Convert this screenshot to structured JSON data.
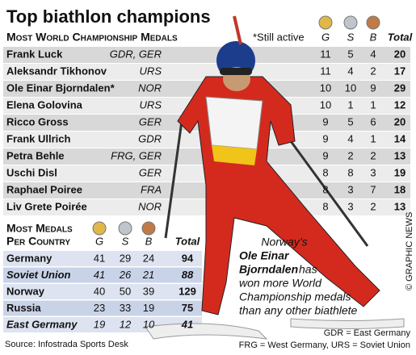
{
  "header": {
    "title": "Top biathlon champions"
  },
  "athletes": {
    "heading": "Most World Championship Medals",
    "note": "*Still active",
    "columns": [
      "G",
      "S",
      "B",
      "Total"
    ],
    "rows": [
      {
        "name": "Frank Luck",
        "country": "GDR, GER",
        "values": [
          11,
          5,
          4,
          20
        ]
      },
      {
        "name": "Aleksandr Tikhonov",
        "country": "URS",
        "values": [
          11,
          4,
          2,
          17
        ]
      },
      {
        "name": "Ole Einar Bjorndalen*",
        "country": "NOR",
        "values": [
          10,
          10,
          9,
          29
        ]
      },
      {
        "name": "Elena Golovina",
        "country": "URS",
        "values": [
          10,
          1,
          1,
          12
        ]
      },
      {
        "name": "Ricco Gross",
        "country": "GER",
        "values": [
          9,
          5,
          6,
          20
        ]
      },
      {
        "name": "Frank Ullrich",
        "country": "GDR",
        "values": [
          9,
          4,
          1,
          14
        ]
      },
      {
        "name": "Petra Behle",
        "country": "FRG, GER",
        "values": [
          9,
          2,
          2,
          13
        ]
      },
      {
        "name": "Uschi Disl",
        "country": "GER",
        "values": [
          8,
          8,
          3,
          19
        ]
      },
      {
        "name": "Raphael Poiree",
        "country": "FRA",
        "values": [
          8,
          3,
          7,
          18
        ]
      },
      {
        "name": "Liv Grete Poirée",
        "country": "NOR",
        "values": [
          8,
          3,
          2,
          13
        ]
      }
    ]
  },
  "countries": {
    "heading": [
      "Most Medals",
      "Per Country"
    ],
    "columns": [
      "G",
      "S",
      "B",
      "Total"
    ],
    "rows": [
      {
        "name": "Germany",
        "values": [
          41,
          29,
          24,
          94
        ]
      },
      {
        "name": "Soviet Union",
        "values": [
          41,
          26,
          21,
          88
        ]
      },
      {
        "name": "Norway",
        "values": [
          40,
          50,
          39,
          129
        ]
      },
      {
        "name": "Russia",
        "values": [
          23,
          33,
          19,
          75
        ]
      },
      {
        "name": "East Germany",
        "values": [
          19,
          12,
          10,
          41
        ]
      }
    ]
  },
  "caption": [
    "Norway’s",
    "Ole Einar",
    "Bjorndalen",
    "has",
    "won more World",
    "Championship medals",
    "than any other biathlete"
  ],
  "footer": {
    "source": "Source: Infostrada Sports Desk",
    "legend": [
      "GDR = East Germany",
      "FRG = West Germany, URS = Soviet Union"
    ],
    "credit": "© GRAPHIC NEWS"
  }
}
